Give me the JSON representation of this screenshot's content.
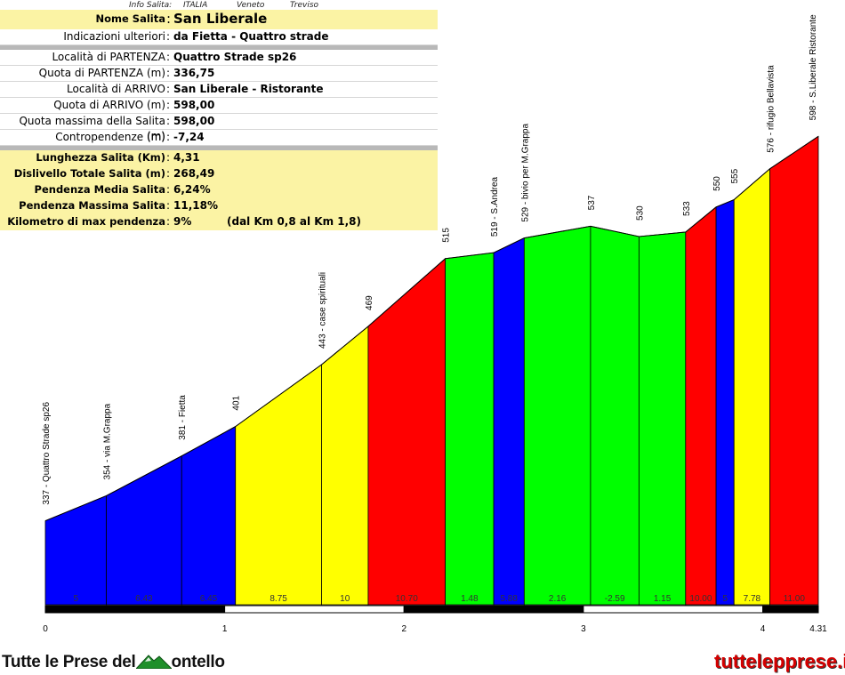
{
  "header": {
    "info_label": "Info Salita:",
    "country": "ITALIA",
    "region": "Veneto",
    "province": "Treviso"
  },
  "info": {
    "title": {
      "label": "Nome Salita",
      "value": "San Liberale"
    },
    "notes": {
      "label": "Indicazioni ulteriori",
      "value": "da Fietta - Quattro strade"
    },
    "rows": [
      {
        "label": "Località di PARTENZA",
        "value": "Quattro Strade sp26"
      },
      {
        "label": "Quota di PARTENZA (m)",
        "value": "336,75"
      },
      {
        "label": "Località di ARRIVO",
        "value": "San Liberale - Ristorante"
      },
      {
        "label": "Quota di ARRIVO (m)",
        "value": "598,00"
      },
      {
        "label": "Quota massima della Salita (m)",
        "value": "598,00"
      },
      {
        "label": "Contropendenze (m)",
        "value": "-7,24"
      }
    ],
    "stats": [
      {
        "label": "Lunghezza Salita (Km)",
        "value": "4,31"
      },
      {
        "label": "Dislivello Totale Salita (m)",
        "value": "268,49"
      },
      {
        "label": "Pendenza Media Salita",
        "value": "6,24%"
      },
      {
        "label": "Pendenza Massima Salita",
        "value": "11,18%"
      },
      {
        "label": "Kilometro di max pendenza",
        "value": "9%",
        "extra": "(dal Km 0,8 al Km 1,8)"
      }
    ]
  },
  "chart_data": {
    "type": "area",
    "x_unit": "km",
    "y_unit": "m",
    "xlim": [
      0,
      4.31
    ],
    "ylim": [
      280,
      600
    ],
    "x_ticks": [
      "0",
      "1",
      "2",
      "3",
      "4",
      "4.31"
    ],
    "points": [
      {
        "km": 0.0,
        "alt": 337,
        "label": "337 - Quattro Strade sp26"
      },
      {
        "km": 0.34,
        "alt": 354,
        "label": "354 - via M.Grappa"
      },
      {
        "km": 0.76,
        "alt": 381,
        "label": "381 - Fietta"
      },
      {
        "km": 1.06,
        "alt": 401,
        "label": "401"
      },
      {
        "km": 1.54,
        "alt": 443,
        "label": "443 - case spirituali"
      },
      {
        "km": 1.8,
        "alt": 469,
        "label": "469"
      },
      {
        "km": 2.23,
        "alt": 515,
        "label": "515"
      },
      {
        "km": 2.5,
        "alt": 519,
        "label": "519 - S.Andrea"
      },
      {
        "km": 2.67,
        "alt": 529,
        "label": "529 - bivio per M.Grappa"
      },
      {
        "km": 3.04,
        "alt": 537,
        "label": "537"
      },
      {
        "km": 3.31,
        "alt": 530,
        "label": "530"
      },
      {
        "km": 3.57,
        "alt": 533,
        "label": "533"
      },
      {
        "km": 3.74,
        "alt": 550,
        "label": "550"
      },
      {
        "km": 3.84,
        "alt": 555,
        "label": "555"
      },
      {
        "km": 4.04,
        "alt": 576,
        "label": "576 - rifugio Bellavista"
      },
      {
        "km": 4.31,
        "alt": 598,
        "label": "598 - S.Liberale Ristorante"
      }
    ],
    "segments": [
      {
        "grade": "5",
        "color": "#0000ff"
      },
      {
        "grade": "6.43",
        "color": "#0000ff"
      },
      {
        "grade": "6.45",
        "color": "#0000ff"
      },
      {
        "grade": "8.75",
        "color": "#ffff00"
      },
      {
        "grade": "10",
        "color": "#ffff00"
      },
      {
        "grade": "10.70",
        "color": "#ff0000"
      },
      {
        "grade": "1.48",
        "color": "#00ff00"
      },
      {
        "grade": "5.88",
        "color": "#0000ff"
      },
      {
        "grade": "2.16",
        "color": "#00ff00"
      },
      {
        "grade": "-2.59",
        "color": "#00ff00"
      },
      {
        "grade": "1.15",
        "color": "#00ff00"
      },
      {
        "grade": "10.00",
        "color": "#ff0000"
      },
      {
        "grade": "5",
        "color": "#0000ff"
      },
      {
        "grade": "7.78",
        "color": "#ffff00"
      },
      {
        "grade": "11.00",
        "color": "#ff0000"
      }
    ]
  },
  "footer": {
    "logo_text_a": "Tutte le Prese del",
    "logo_text_b": "ontello",
    "site": "tuttelepprese.it"
  }
}
